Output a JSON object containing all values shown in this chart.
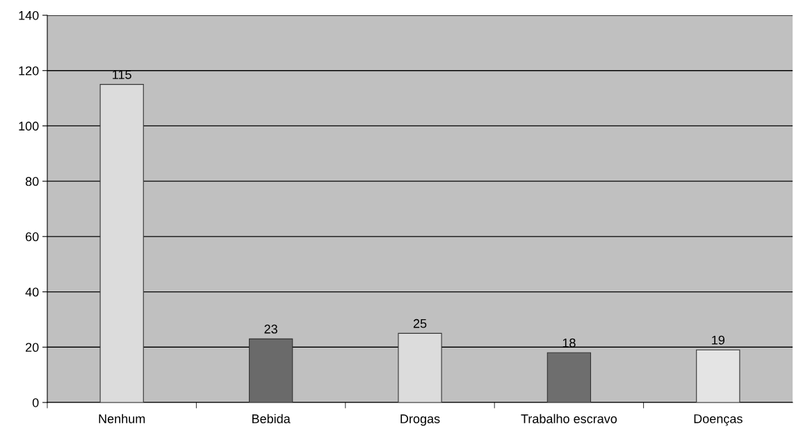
{
  "chart_data": {
    "type": "bar",
    "categories": [
      "Nenhum",
      "Bebida",
      "Drogas",
      "Trabalho escravo",
      "Doenças"
    ],
    "values": [
      115,
      23,
      25,
      18,
      19
    ],
    "colors": [
      "#dcdcdc",
      "#6a6a6a",
      "#dcdcdc",
      "#6e6e6e",
      "#e4e4e4"
    ],
    "ylim": [
      0,
      140
    ],
    "yticks": [
      0,
      20,
      40,
      60,
      80,
      100,
      120,
      140
    ],
    "grid": "y",
    "data_labels": true
  }
}
